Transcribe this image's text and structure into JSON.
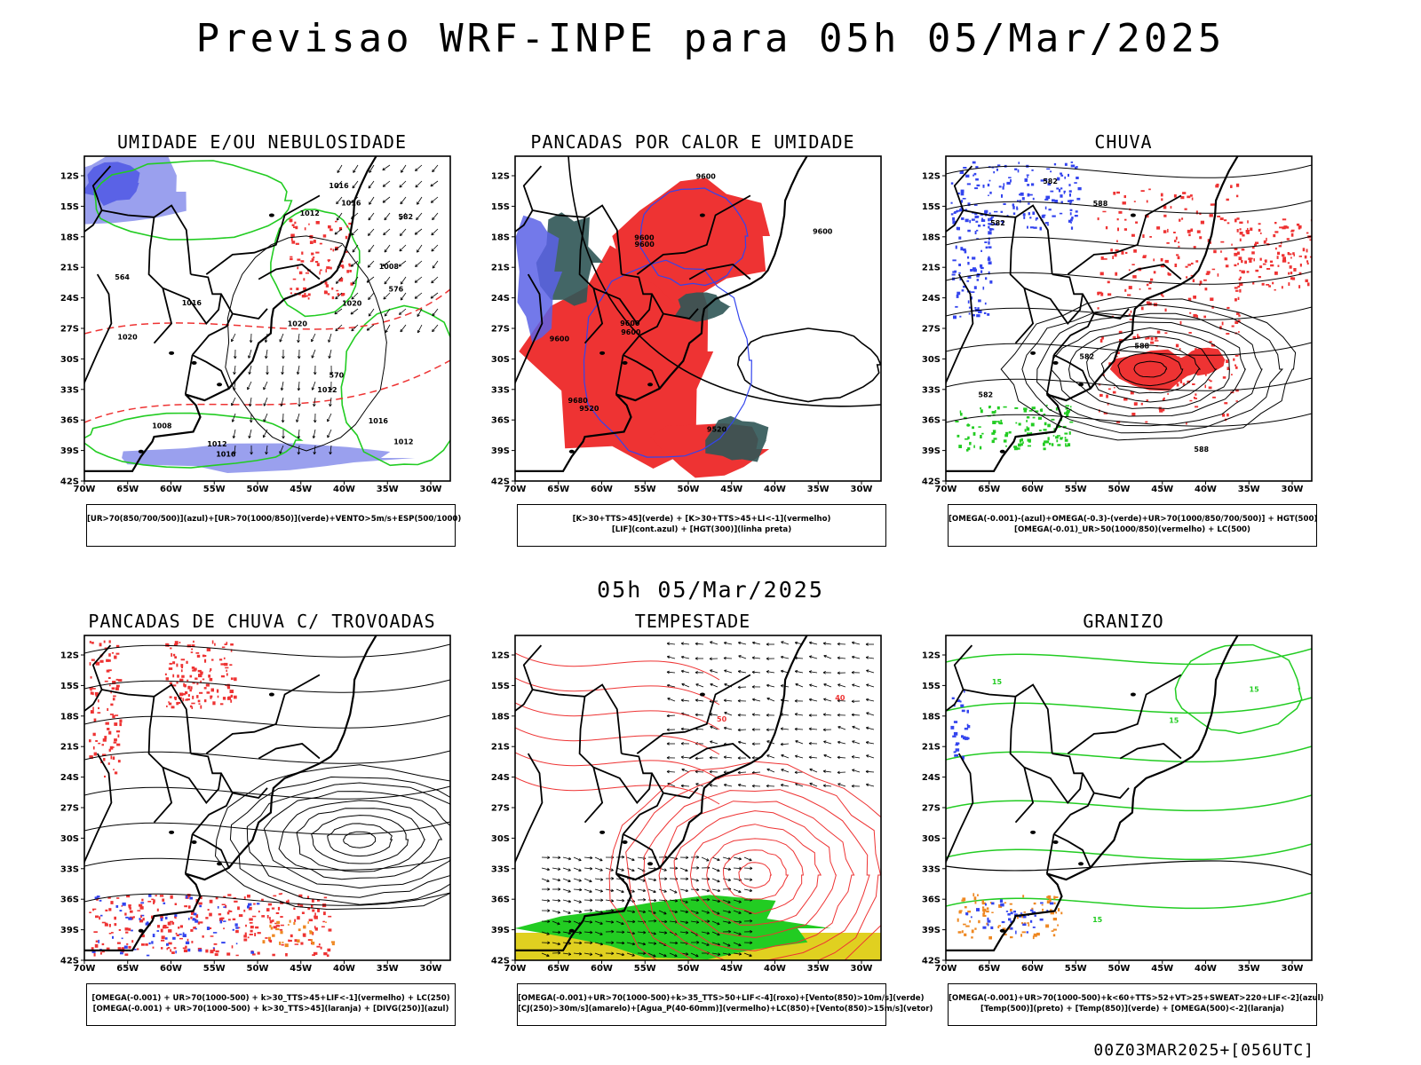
{
  "title": "Previsao WRF-INPE  para 05h 05/Mar/2025",
  "subtitle": "05h 05/Mar/2025",
  "footer": "00Z03MAR2025+[056UTC]",
  "axes": {
    "lat_labels": [
      "12S",
      "15S",
      "18S",
      "21S",
      "24S",
      "27S",
      "30S",
      "33S",
      "36S",
      "39S",
      "42S"
    ],
    "lon_labels": [
      "70W",
      "65W",
      "60W",
      "55W",
      "50W",
      "45W",
      "40W",
      "35W",
      "30W"
    ]
  },
  "colors": {
    "red": "#ee3333",
    "green": "#22cc22",
    "blue": "#3344ee",
    "lightblue": "#9aa0ee",
    "darkteal": "#2f5555",
    "yellow": "#e0d020",
    "orange": "#ee8822",
    "purple": "#aa22aa"
  },
  "panels": [
    {
      "id": "umidade",
      "title": "UMIDADE E/OU NEBULOSIDADE",
      "legend": [
        "[UR>70(850/700/500)](azul)+[UR>70(1000/850)](verde)+VENTO>5m/s+ESP(500/1000)"
      ],
      "contour_labels": [
        "1012",
        "1016",
        "1016",
        "1012",
        "1008",
        "1020",
        "1016",
        "1012",
        "1008",
        "1020",
        "1020",
        "1016",
        "1016",
        "1012",
        "576",
        "570",
        "564",
        "582"
      ]
    },
    {
      "id": "pancadas-calor",
      "title": "PANCADAS POR CALOR E UMIDADE",
      "legend": [
        "[K>30+TTS>45](verde) + [K>30+TTS>45+LI<-1](vermelho)",
        "[LIF](cont.azul) + [HGT(300)](linha preta)"
      ],
      "contour_labels": [
        "9600",
        "9600",
        "9600",
        "9520",
        "9600",
        "9600",
        "9680",
        "9600",
        "9520",
        "9600"
      ]
    },
    {
      "id": "chuva",
      "title": "CHUVA",
      "legend": [
        "[OMEGA(-0.001)-(azul)+OMEGA(-0.3)-(verde)+UR>70(1000/850/700/500)] + HGT(500)",
        "[OMEGA(-0.01)_UR>50(1000/850)(vermelho) + LC(500)"
      ],
      "contour_labels": [
        "582",
        "588",
        "582",
        "588",
        "582",
        "588",
        "582"
      ]
    },
    {
      "id": "pancadas-trovoadas",
      "title": "PANCADAS DE CHUVA C/ TROVOADAS",
      "legend": [
        "[OMEGA(-0.001) + UR>70(1000-500) + k>30_TTS>45+LIF<-1](vermelho) + LC(250)",
        "[OMEGA(-0.001) + UR>70(1000-500) + k>30_TTS>45](laranja) + [DIVG(250)](azul)"
      ],
      "contour_labels": []
    },
    {
      "id": "tempestade",
      "title": "TEMPESTADE",
      "legend": [
        "[OMEGA(-0.001)+UR>70(1000-500)+k>35_TTS>50+LIF<-4](roxo)+[Vento(850)>10m/s](verde)",
        "[CJ(250)>30m/s](amarelo)+[Agua_P(40-60mm)](vermelho)+LC(850)+[Vento(850)>15m/s](vetor)"
      ],
      "contour_labels": [
        "50",
        "40"
      ]
    },
    {
      "id": "granizo",
      "title": "GRANIZO",
      "legend": [
        "[OMEGA(-0.001)+UR>70(1000-500)+k<60+TTS>52+VT>25+SWEAT>220+LIF<-2](azul)",
        "[Temp(500)](preto) + [Temp(850)](verde) + [OMEGA(500)<-2](laranja)"
      ],
      "contour_labels": [
        "15",
        "15",
        "15",
        "15"
      ]
    }
  ]
}
